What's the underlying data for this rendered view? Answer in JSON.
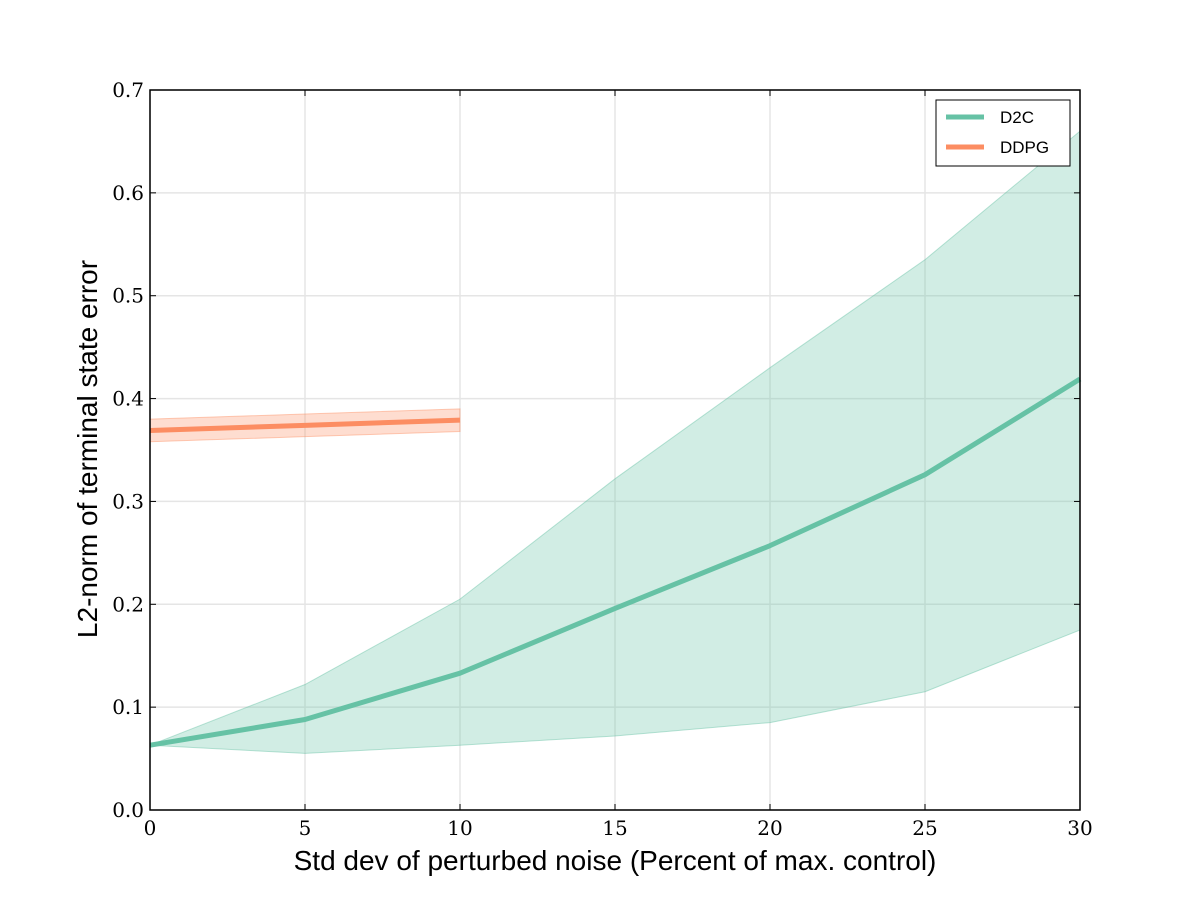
{
  "chart_data": {
    "type": "line",
    "title": "",
    "xlabel": "Std dev of perturbed noise (Percent of max. control)",
    "ylabel": "L2-norm of terminal state error",
    "xlim": [
      0,
      30
    ],
    "ylim": [
      0,
      0.7
    ],
    "x_ticks": [
      "0",
      "5",
      "10",
      "15",
      "20",
      "25",
      "30"
    ],
    "y_ticks": [
      "0.0",
      "0.1",
      "0.2",
      "0.3",
      "0.4",
      "0.5",
      "0.6",
      "0.7"
    ],
    "grid": true,
    "legend_position": "top-right",
    "series": [
      {
        "name": "D2C",
        "color": "#66c2a5",
        "x": [
          0,
          5,
          10,
          15,
          20,
          25,
          30
        ],
        "y": [
          0.063,
          0.088,
          0.133,
          0.196,
          0.257,
          0.326,
          0.419
        ],
        "band_upper": [
          0.063,
          0.122,
          0.205,
          0.322,
          0.43,
          0.535,
          0.66
        ],
        "band_lower": [
          0.063,
          0.055,
          0.063,
          0.072,
          0.085,
          0.115,
          0.175
        ]
      },
      {
        "name": "DDPG",
        "color": "#fc8d62",
        "x": [
          0,
          5,
          10
        ],
        "y": [
          0.369,
          0.374,
          0.379
        ],
        "band_upper": [
          0.38,
          0.385,
          0.39
        ],
        "band_lower": [
          0.358,
          0.363,
          0.368
        ]
      }
    ]
  }
}
